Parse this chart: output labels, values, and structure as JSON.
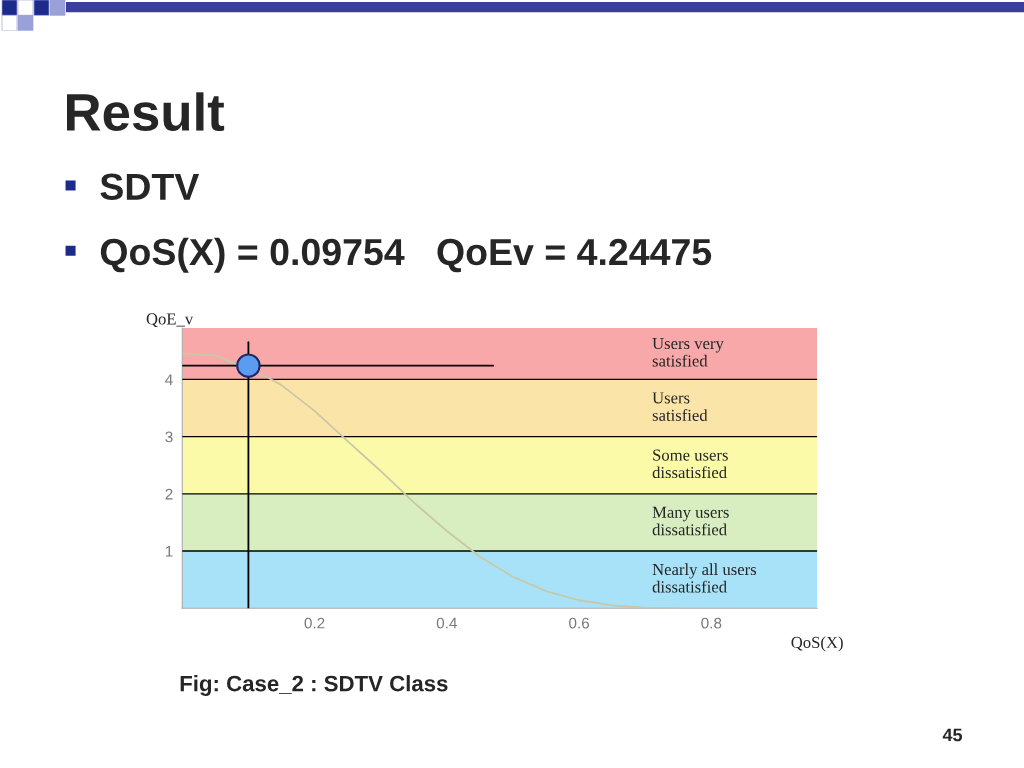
{
  "chart_data": {
    "type": "line",
    "title": "Result",
    "subtitle": "SDTV",
    "xlabel": "QoS(X)",
    "ylabel": "QoE_v",
    "annotations": [
      "QoS(X) = 0.09754   QoEv = 4.24475",
      "Fig: Case_2 : SDTV Class",
      "45"
    ],
    "x": [
      0,
      0.05,
      0.13,
      0.15,
      0.2,
      0.25,
      0.3,
      0.35,
      0.4,
      0.45,
      0.5,
      0.55,
      0.6,
      0.65,
      0.7,
      0.75
    ],
    "series": [
      {
        "color": "#c8c8a8",
        "values": [
          4.45,
          4.42,
          4.03,
          3.9,
          3.45,
          2.92,
          2.4,
          1.85,
          1.35,
          0.9,
          0.55,
          0.3,
          0.14,
          0.05,
          0.01,
          0
        ]
      },
      {
        "color": "#000000",
        "x": [
          0,
          0.47
        ],
        "values": [
          4.24,
          4.24
        ]
      },
      {
        "color": "#000000",
        "x": [
          0.1,
          0.1
        ],
        "values": [
          0,
          4.65
        ]
      },
      {
        "type": "scatter",
        "color": "#5b9bf0",
        "x": [
          0.1
        ],
        "values": [
          4.24
        ],
        "marker": "circle"
      }
    ],
    "xlim": [
      0,
      0.96
    ],
    "ylim": [
      0,
      4.9
    ],
    "xticks": [
      0.2,
      0.4,
      0.6,
      0.8
    ],
    "yticks": [
      1,
      2,
      3,
      4
    ],
    "bands": [
      {
        "axis": "y",
        "from": 0,
        "to": 1,
        "label": "Nearly all users\ndissatisfied",
        "color": "#a8e2f8"
      },
      {
        "axis": "y",
        "from": 1,
        "to": 2,
        "label": "Many users\ndissatisfied",
        "color": "#d8eec0"
      },
      {
        "axis": "y",
        "from": 2,
        "to": 3,
        "label": "Some users\ndissatisfied",
        "color": "#fafaa8"
      },
      {
        "axis": "y",
        "from": 3,
        "to": 4,
        "label": "Users\nsatisfied",
        "color": "#fbe4a8"
      },
      {
        "axis": "y",
        "from": 4,
        "to": 4.9,
        "label": "Users very\nsatisfied",
        "color": "#f8a8a8"
      }
    ],
    "grid": "y",
    "legend": false
  }
}
